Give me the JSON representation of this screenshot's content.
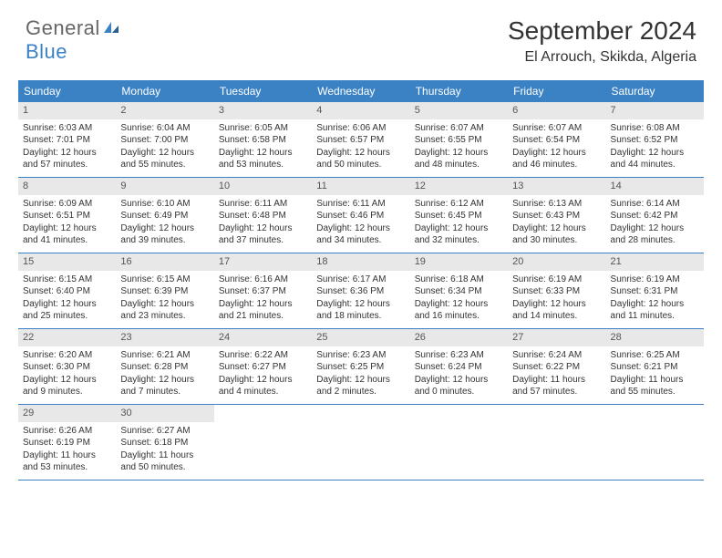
{
  "logo": {
    "general": "General",
    "blue": "Blue"
  },
  "title": "September 2024",
  "location": "El Arrouch, Skikda, Algeria",
  "colors": {
    "header_bar": "#3b82c4",
    "day_number_bg": "#e8e8e8",
    "text": "#333333",
    "logo_gray": "#666666",
    "logo_blue": "#3b82c4"
  },
  "weekdays": [
    "Sunday",
    "Monday",
    "Tuesday",
    "Wednesday",
    "Thursday",
    "Friday",
    "Saturday"
  ],
  "weeks": [
    [
      {
        "n": "1",
        "sr": "Sunrise: 6:03 AM",
        "ss": "Sunset: 7:01 PM",
        "dl": "Daylight: 12 hours and 57 minutes."
      },
      {
        "n": "2",
        "sr": "Sunrise: 6:04 AM",
        "ss": "Sunset: 7:00 PM",
        "dl": "Daylight: 12 hours and 55 minutes."
      },
      {
        "n": "3",
        "sr": "Sunrise: 6:05 AM",
        "ss": "Sunset: 6:58 PM",
        "dl": "Daylight: 12 hours and 53 minutes."
      },
      {
        "n": "4",
        "sr": "Sunrise: 6:06 AM",
        "ss": "Sunset: 6:57 PM",
        "dl": "Daylight: 12 hours and 50 minutes."
      },
      {
        "n": "5",
        "sr": "Sunrise: 6:07 AM",
        "ss": "Sunset: 6:55 PM",
        "dl": "Daylight: 12 hours and 48 minutes."
      },
      {
        "n": "6",
        "sr": "Sunrise: 6:07 AM",
        "ss": "Sunset: 6:54 PM",
        "dl": "Daylight: 12 hours and 46 minutes."
      },
      {
        "n": "7",
        "sr": "Sunrise: 6:08 AM",
        "ss": "Sunset: 6:52 PM",
        "dl": "Daylight: 12 hours and 44 minutes."
      }
    ],
    [
      {
        "n": "8",
        "sr": "Sunrise: 6:09 AM",
        "ss": "Sunset: 6:51 PM",
        "dl": "Daylight: 12 hours and 41 minutes."
      },
      {
        "n": "9",
        "sr": "Sunrise: 6:10 AM",
        "ss": "Sunset: 6:49 PM",
        "dl": "Daylight: 12 hours and 39 minutes."
      },
      {
        "n": "10",
        "sr": "Sunrise: 6:11 AM",
        "ss": "Sunset: 6:48 PM",
        "dl": "Daylight: 12 hours and 37 minutes."
      },
      {
        "n": "11",
        "sr": "Sunrise: 6:11 AM",
        "ss": "Sunset: 6:46 PM",
        "dl": "Daylight: 12 hours and 34 minutes."
      },
      {
        "n": "12",
        "sr": "Sunrise: 6:12 AM",
        "ss": "Sunset: 6:45 PM",
        "dl": "Daylight: 12 hours and 32 minutes."
      },
      {
        "n": "13",
        "sr": "Sunrise: 6:13 AM",
        "ss": "Sunset: 6:43 PM",
        "dl": "Daylight: 12 hours and 30 minutes."
      },
      {
        "n": "14",
        "sr": "Sunrise: 6:14 AM",
        "ss": "Sunset: 6:42 PM",
        "dl": "Daylight: 12 hours and 28 minutes."
      }
    ],
    [
      {
        "n": "15",
        "sr": "Sunrise: 6:15 AM",
        "ss": "Sunset: 6:40 PM",
        "dl": "Daylight: 12 hours and 25 minutes."
      },
      {
        "n": "16",
        "sr": "Sunrise: 6:15 AM",
        "ss": "Sunset: 6:39 PM",
        "dl": "Daylight: 12 hours and 23 minutes."
      },
      {
        "n": "17",
        "sr": "Sunrise: 6:16 AM",
        "ss": "Sunset: 6:37 PM",
        "dl": "Daylight: 12 hours and 21 minutes."
      },
      {
        "n": "18",
        "sr": "Sunrise: 6:17 AM",
        "ss": "Sunset: 6:36 PM",
        "dl": "Daylight: 12 hours and 18 minutes."
      },
      {
        "n": "19",
        "sr": "Sunrise: 6:18 AM",
        "ss": "Sunset: 6:34 PM",
        "dl": "Daylight: 12 hours and 16 minutes."
      },
      {
        "n": "20",
        "sr": "Sunrise: 6:19 AM",
        "ss": "Sunset: 6:33 PM",
        "dl": "Daylight: 12 hours and 14 minutes."
      },
      {
        "n": "21",
        "sr": "Sunrise: 6:19 AM",
        "ss": "Sunset: 6:31 PM",
        "dl": "Daylight: 12 hours and 11 minutes."
      }
    ],
    [
      {
        "n": "22",
        "sr": "Sunrise: 6:20 AM",
        "ss": "Sunset: 6:30 PM",
        "dl": "Daylight: 12 hours and 9 minutes."
      },
      {
        "n": "23",
        "sr": "Sunrise: 6:21 AM",
        "ss": "Sunset: 6:28 PM",
        "dl": "Daylight: 12 hours and 7 minutes."
      },
      {
        "n": "24",
        "sr": "Sunrise: 6:22 AM",
        "ss": "Sunset: 6:27 PM",
        "dl": "Daylight: 12 hours and 4 minutes."
      },
      {
        "n": "25",
        "sr": "Sunrise: 6:23 AM",
        "ss": "Sunset: 6:25 PM",
        "dl": "Daylight: 12 hours and 2 minutes."
      },
      {
        "n": "26",
        "sr": "Sunrise: 6:23 AM",
        "ss": "Sunset: 6:24 PM",
        "dl": "Daylight: 12 hours and 0 minutes."
      },
      {
        "n": "27",
        "sr": "Sunrise: 6:24 AM",
        "ss": "Sunset: 6:22 PM",
        "dl": "Daylight: 11 hours and 57 minutes."
      },
      {
        "n": "28",
        "sr": "Sunrise: 6:25 AM",
        "ss": "Sunset: 6:21 PM",
        "dl": "Daylight: 11 hours and 55 minutes."
      }
    ],
    [
      {
        "n": "29",
        "sr": "Sunrise: 6:26 AM",
        "ss": "Sunset: 6:19 PM",
        "dl": "Daylight: 11 hours and 53 minutes."
      },
      {
        "n": "30",
        "sr": "Sunrise: 6:27 AM",
        "ss": "Sunset: 6:18 PM",
        "dl": "Daylight: 11 hours and 50 minutes."
      },
      null,
      null,
      null,
      null,
      null
    ]
  ]
}
